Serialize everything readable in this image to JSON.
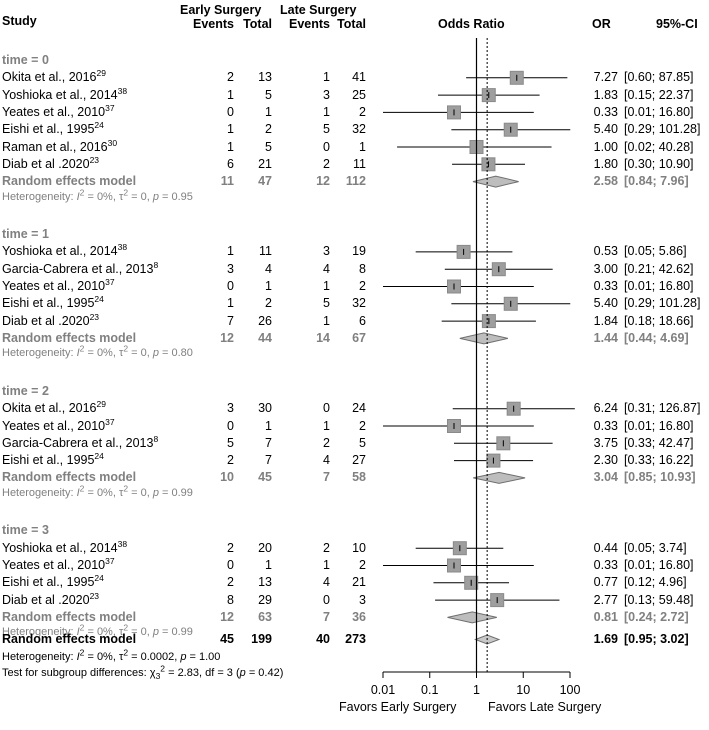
{
  "header": {
    "study": "Study",
    "early_group": "Early Surgery",
    "late_group": "Late Surgery",
    "events": "Events",
    "total": "Total",
    "odds_ratio": "Odds Ratio",
    "or": "OR",
    "ci": "95%-CI"
  },
  "chart_data": {
    "type": "forest",
    "xscale": "log",
    "xlim": [
      0.01,
      100
    ],
    "x_ticks": [
      "0.01",
      "0.1",
      "1",
      "10",
      "100"
    ],
    "pooled_line": 1.69,
    "xlabel_left": "Favors Early Surgery",
    "xlabel_right": "Favors Late Surgery",
    "groups": [
      {
        "label": "time = 0",
        "studies": [
          {
            "name": "Okita et al., 2016",
            "ref": "29",
            "ee": "2",
            "et": "13",
            "le": "1",
            "lt": "41",
            "or": 7.27,
            "lo": 0.6,
            "hi": 87.85,
            "or_text": "7.27",
            "ci_text": "[0.60; 87.85]"
          },
          {
            "name": "Yoshioka et al., 2014",
            "ref": "38",
            "ee": "1",
            "et": "5",
            "le": "3",
            "lt": "25",
            "or": 1.83,
            "lo": 0.15,
            "hi": 22.37,
            "or_text": "1.83",
            "ci_text": "[0.15; 22.37]"
          },
          {
            "name": "Yeates et al., 2010",
            "ref": "37",
            "ee": "0",
            "et": "1",
            "le": "1",
            "lt": "2",
            "or": 0.33,
            "lo": 0.01,
            "hi": 16.8,
            "or_text": "0.33",
            "ci_text": "[0.01; 16.80]"
          },
          {
            "name": "Eishi et al., 1995",
            "ref": "24",
            "ee": "1",
            "et": "2",
            "le": "5",
            "lt": "32",
            "or": 5.4,
            "lo": 0.29,
            "hi": 101.28,
            "or_text": "5.40",
            "ci_text": "[0.29; 101.28]"
          },
          {
            "name": "Raman et al., 2016",
            "ref": "30",
            "ee": "1",
            "et": "5",
            "le": "0",
            "lt": "1",
            "or": 1.0,
            "lo": 0.02,
            "hi": 40.28,
            "or_text": "1.00",
            "ci_text": "[0.02; 40.28]"
          },
          {
            "name": "Diab et al .2020",
            "ref": "23",
            "ee": "6",
            "et": "21",
            "le": "2",
            "lt": "11",
            "or": 1.8,
            "lo": 0.3,
            "hi": 10.9,
            "or_text": "1.80",
            "ci_text": "[0.30; 10.90]"
          }
        ],
        "model": {
          "label": "Random effects model",
          "ee": "11",
          "et": "47",
          "le": "12",
          "lt": "112",
          "or": 2.58,
          "lo": 0.84,
          "hi": 7.96,
          "or_text": "2.58",
          "ci_text": "[0.84; 7.96]"
        },
        "heterogeneity": {
          "prefix": "Heterogeneity: ",
          "i2": "I",
          "i2_rest": "2",
          "mid": " = 0%, ",
          "tau": "τ",
          "tau2": "2",
          "tail": " = 0, ",
          "p": "p",
          "p_val": " = 0.95"
        }
      },
      {
        "label": "time = 1",
        "studies": [
          {
            "name": "Yoshioka et al., 2014",
            "ref": "38",
            "ee": "1",
            "et": "11",
            "le": "3",
            "lt": "19",
            "or": 0.53,
            "lo": 0.05,
            "hi": 5.86,
            "or_text": "0.53",
            "ci_text": "[0.05; 5.86]"
          },
          {
            "name": "Garcia-Cabrera et al., 2013",
            "ref": "8",
            "ee": "3",
            "et": "4",
            "le": "4",
            "lt": "8",
            "or": 3.0,
            "lo": 0.21,
            "hi": 42.62,
            "or_text": "3.00",
            "ci_text": "[0.21; 42.62]"
          },
          {
            "name": "Yeates et al., 2010",
            "ref": "37",
            "ee": "0",
            "et": "1",
            "le": "1",
            "lt": "2",
            "or": 0.33,
            "lo": 0.01,
            "hi": 16.8,
            "or_text": "0.33",
            "ci_text": "[0.01; 16.80]"
          },
          {
            "name": "Eishi et al., 1995",
            "ref": "24",
            "ee": "1",
            "et": "2",
            "le": "5",
            "lt": "32",
            "or": 5.4,
            "lo": 0.29,
            "hi": 101.28,
            "or_text": "5.40",
            "ci_text": "[0.29; 101.28]"
          },
          {
            "name": "Diab et al .2020",
            "ref": "23",
            "ee": "7",
            "et": "26",
            "le": "1",
            "lt": "6",
            "or": 1.84,
            "lo": 0.18,
            "hi": 18.66,
            "or_text": "1.84",
            "ci_text": "[0.18; 18.66]"
          }
        ],
        "model": {
          "label": "Random effects model",
          "ee": "12",
          "et": "44",
          "le": "14",
          "lt": "67",
          "or": 1.44,
          "lo": 0.44,
          "hi": 4.69,
          "or_text": "1.44",
          "ci_text": "[0.44; 4.69]"
        },
        "heterogeneity": {
          "prefix": "Heterogeneity: ",
          "i2": "I",
          "i2_rest": "2",
          "mid": " = 0%, ",
          "tau": "τ",
          "tau2": "2",
          "tail": " = 0, ",
          "p": "p",
          "p_val": " = 0.80"
        }
      },
      {
        "label": "time = 2",
        "studies": [
          {
            "name": "Okita et al., 2016",
            "ref": "29",
            "ee": "3",
            "et": "30",
            "le": "0",
            "lt": "24",
            "or": 6.24,
            "lo": 0.31,
            "hi": 126.87,
            "or_text": "6.24",
            "ci_text": "[0.31; 126.87]"
          },
          {
            "name": "Yeates et al., 2010",
            "ref": "37",
            "ee": "0",
            "et": "1",
            "le": "1",
            "lt": "2",
            "or": 0.33,
            "lo": 0.01,
            "hi": 16.8,
            "or_text": "0.33",
            "ci_text": "[0.01; 16.80]"
          },
          {
            "name": "Garcia-Cabrera et al., 2013",
            "ref": "8",
            "ee": "5",
            "et": "7",
            "le": "2",
            "lt": "5",
            "or": 3.75,
            "lo": 0.33,
            "hi": 42.47,
            "or_text": "3.75",
            "ci_text": "[0.33; 42.47]"
          },
          {
            "name": "Eishi et al., 1995",
            "ref": "24",
            "ee": "2",
            "et": "7",
            "le": "4",
            "lt": "27",
            "or": 2.3,
            "lo": 0.33,
            "hi": 16.22,
            "or_text": "2.30",
            "ci_text": "[0.33; 16.22]"
          }
        ],
        "model": {
          "label": "Random effects model",
          "ee": "10",
          "et": "45",
          "le": "7",
          "lt": "58",
          "or": 3.04,
          "lo": 0.85,
          "hi": 10.93,
          "or_text": "3.04",
          "ci_text": "[0.85; 10.93]"
        },
        "heterogeneity": {
          "prefix": "Heterogeneity: ",
          "i2": "I",
          "i2_rest": "2",
          "mid": " = 0%, ",
          "tau": "τ",
          "tau2": "2",
          "tail": " = 0, ",
          "p": "p",
          "p_val": " = 0.99"
        }
      },
      {
        "label": "time = 3",
        "studies": [
          {
            "name": "Yoshioka et al., 2014",
            "ref": "38",
            "ee": "2",
            "et": "20",
            "le": "2",
            "lt": "10",
            "or": 0.44,
            "lo": 0.05,
            "hi": 3.74,
            "or_text": "0.44",
            "ci_text": "[0.05; 3.74]"
          },
          {
            "name": "Yeates et al., 2010",
            "ref": "37",
            "ee": "0",
            "et": "1",
            "le": "1",
            "lt": "2",
            "or": 0.33,
            "lo": 0.01,
            "hi": 16.8,
            "or_text": "0.33",
            "ci_text": "[0.01; 16.80]"
          },
          {
            "name": "Eishi et al., 1995",
            "ref": "24",
            "ee": "2",
            "et": "13",
            "le": "4",
            "lt": "21",
            "or": 0.77,
            "lo": 0.12,
            "hi": 4.96,
            "or_text": "0.77",
            "ci_text": "[0.12; 4.96]"
          },
          {
            "name": "Diab et al .2020",
            "ref": "23",
            "ee": "8",
            "et": "29",
            "le": "0",
            "lt": "3",
            "or": 2.77,
            "lo": 0.13,
            "hi": 59.48,
            "or_text": "2.77",
            "ci_text": "[0.13; 59.48]"
          }
        ],
        "model": {
          "label": "Random effects model",
          "ee": "12",
          "et": "63",
          "le": "7",
          "lt": "36",
          "or": 0.81,
          "lo": 0.24,
          "hi": 2.72,
          "or_text": "0.81",
          "ci_text": "[0.24; 2.72]"
        },
        "heterogeneity": {
          "prefix": "Heterogeneity: ",
          "i2": "I",
          "i2_rest": "2",
          "mid": " = 0%, ",
          "tau": "τ",
          "tau2": "2",
          "tail": " = 0, ",
          "p": "p",
          "p_val": " = 0.99"
        }
      }
    ],
    "overall": {
      "label": "Random effects model",
      "ee": "45",
      "et": "199",
      "le": "40",
      "lt": "273",
      "or": 1.69,
      "lo": 0.95,
      "hi": 3.02,
      "or_text": "1.69",
      "ci_text": "[0.95; 3.02]",
      "heterogeneity": {
        "prefix": "Heterogeneity: ",
        "i2": "I",
        "i2_rest": "2",
        "mid": " = 0%, ",
        "tau": "τ",
        "tau2": "2",
        "tail": " = 0.0002, ",
        "p": "p",
        "p_val": " = 1.00"
      },
      "subgroup_test": {
        "prefix": "Test for subgroup differences: ",
        "chi": "χ",
        "chi_sub": "3",
        "chi_sup": "2",
        "mid": " = 2.83, df = 3 (",
        "p": "p",
        "tail": " = 0.42)"
      }
    }
  }
}
